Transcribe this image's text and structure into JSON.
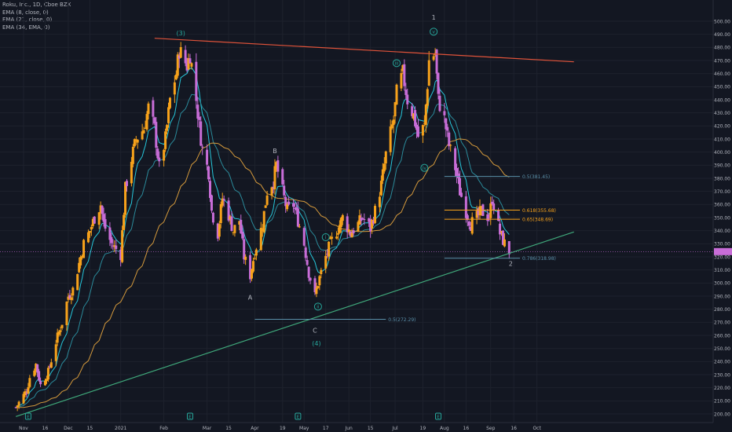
{
  "legend": {
    "title": "Roku, Inc., 1D, Cboe BZX",
    "ema8": "EMA (8, close, 0)",
    "ema21": "EMA (21, close, 0)",
    "ema34": "EMA (34, EMA, 0)"
  },
  "colors": {
    "background": "#131722",
    "grid": "#1e222d",
    "up": "#f7a21b",
    "down": "#c86dd7",
    "ema_fast": "#26c6da",
    "ema_slow": "#2b8a9a",
    "ema_long": "#d59a3c",
    "resistance": "#e0533a",
    "support": "#3fa77a",
    "wave_label": "#26a69a",
    "fib_line": "#5a8fa8",
    "fib_orange": "#f7a21b",
    "price_tag": "#c86dd7",
    "text": "#b2b5be"
  },
  "chart_data": {
    "type": "candlestick",
    "title": "Roku, Inc., 1D, Cboe BZX",
    "ylim": [
      195,
      505
    ],
    "y_ticks": [
      "500.00",
      "490.00",
      "480.00",
      "470.00",
      "460.00",
      "450.00",
      "440.00",
      "430.00",
      "420.00",
      "410.00",
      "400.00",
      "390.00",
      "380.00",
      "370.00",
      "360.00",
      "350.00",
      "340.00",
      "330.00",
      "320.00",
      "310.00",
      "300.00",
      "290.00",
      "280.00",
      "270.00",
      "260.00",
      "250.00",
      "240.00",
      "230.00",
      "220.00",
      "210.00",
      "200.00"
    ],
    "x_ticks": [
      {
        "label": "Nov",
        "date": "2020-11-02"
      },
      {
        "label": "16",
        "date": "2020-11-16"
      },
      {
        "label": "Dec",
        "date": "2020-12-01"
      },
      {
        "label": "15",
        "date": "2020-12-15"
      },
      {
        "label": "2021",
        "date": "2021-01-04"
      },
      {
        "label": "Feb",
        "date": "2021-02-01"
      },
      {
        "label": "Mar",
        "date": "2021-03-01"
      },
      {
        "label": "15",
        "date": "2021-03-15"
      },
      {
        "label": "Apr",
        "date": "2021-04-01"
      },
      {
        "label": "19",
        "date": "2021-04-19"
      },
      {
        "label": "May",
        "date": "2021-05-03"
      },
      {
        "label": "17",
        "date": "2021-05-17"
      },
      {
        "label": "Jun",
        "date": "2021-06-01"
      },
      {
        "label": "15",
        "date": "2021-06-15"
      },
      {
        "label": "Jul",
        "date": "2021-07-01"
      },
      {
        "label": "19",
        "date": "2021-07-19"
      },
      {
        "label": "Aug",
        "date": "2021-08-02"
      },
      {
        "label": "16",
        "date": "2021-08-16"
      },
      {
        "label": "Sep",
        "date": "2021-09-01"
      },
      {
        "label": "16",
        "date": "2021-09-16"
      },
      {
        "label": "Oct",
        "date": "2021-10-01"
      }
    ],
    "last_price": 324,
    "keypoints": [
      {
        "date": "2020-10-28",
        "close": 205
      },
      {
        "date": "2020-11-04",
        "close": 218
      },
      {
        "date": "2020-11-06",
        "close": 228
      },
      {
        "date": "2020-11-10",
        "close": 238
      },
      {
        "date": "2020-11-13",
        "close": 222
      },
      {
        "date": "2020-11-18",
        "close": 232
      },
      {
        "date": "2020-11-23",
        "close": 255
      },
      {
        "date": "2020-11-27",
        "close": 270
      },
      {
        "date": "2020-12-01",
        "close": 290
      },
      {
        "date": "2020-12-04",
        "close": 295
      },
      {
        "date": "2020-12-08",
        "close": 315
      },
      {
        "date": "2020-12-11",
        "close": 330
      },
      {
        "date": "2020-12-15",
        "close": 340
      },
      {
        "date": "2020-12-18",
        "close": 350
      },
      {
        "date": "2020-12-22",
        "close": 360
      },
      {
        "date": "2020-12-24",
        "close": 345
      },
      {
        "date": "2020-12-29",
        "close": 330
      },
      {
        "date": "2021-01-04",
        "close": 322
      },
      {
        "date": "2021-01-07",
        "close": 372
      },
      {
        "date": "2021-01-11",
        "close": 395
      },
      {
        "date": "2021-01-14",
        "close": 410
      },
      {
        "date": "2021-01-19",
        "close": 418
      },
      {
        "date": "2021-01-22",
        "close": 434
      },
      {
        "date": "2021-01-26",
        "close": 418
      },
      {
        "date": "2021-01-29",
        "close": 388
      },
      {
        "date": "2021-02-02",
        "close": 410
      },
      {
        "date": "2021-02-05",
        "close": 440
      },
      {
        "date": "2021-02-09",
        "close": 460
      },
      {
        "date": "2021-02-11",
        "close": 478
      },
      {
        "date": "2021-02-16",
        "close": 466
      },
      {
        "date": "2021-02-18",
        "close": 475
      },
      {
        "date": "2021-02-22",
        "close": 440
      },
      {
        "date": "2021-02-24",
        "close": 420
      },
      {
        "date": "2021-02-26",
        "close": 402
      },
      {
        "date": "2021-03-02",
        "close": 385
      },
      {
        "date": "2021-03-04",
        "close": 355
      },
      {
        "date": "2021-03-08",
        "close": 338
      },
      {
        "date": "2021-03-11",
        "close": 365
      },
      {
        "date": "2021-03-15",
        "close": 352
      },
      {
        "date": "2021-03-18",
        "close": 340
      },
      {
        "date": "2021-03-22",
        "close": 348
      },
      {
        "date": "2021-03-25",
        "close": 320
      },
      {
        "date": "2021-03-29",
        "close": 306
      },
      {
        "date": "2021-04-01",
        "close": 324
      },
      {
        "date": "2021-04-06",
        "close": 345
      },
      {
        "date": "2021-04-09",
        "close": 370
      },
      {
        "date": "2021-04-13",
        "close": 378
      },
      {
        "date": "2021-04-15",
        "close": 390
      },
      {
        "date": "2021-04-19",
        "close": 370
      },
      {
        "date": "2021-04-22",
        "close": 355
      },
      {
        "date": "2021-04-26",
        "close": 360
      },
      {
        "date": "2021-04-29",
        "close": 348
      },
      {
        "date": "2021-05-03",
        "close": 330
      },
      {
        "date": "2021-05-06",
        "close": 308
      },
      {
        "date": "2021-05-10",
        "close": 290
      },
      {
        "date": "2021-05-12",
        "close": 300
      },
      {
        "date": "2021-05-17",
        "close": 320
      },
      {
        "date": "2021-05-20",
        "close": 330
      },
      {
        "date": "2021-05-25",
        "close": 342
      },
      {
        "date": "2021-05-28",
        "close": 350
      },
      {
        "date": "2021-06-02",
        "close": 338
      },
      {
        "date": "2021-06-07",
        "close": 345
      },
      {
        "date": "2021-06-10",
        "close": 350
      },
      {
        "date": "2021-06-15",
        "close": 342
      },
      {
        "date": "2021-06-18",
        "close": 355
      },
      {
        "date": "2021-06-22",
        "close": 375
      },
      {
        "date": "2021-06-25",
        "close": 398
      },
      {
        "date": "2021-06-30",
        "close": 425
      },
      {
        "date": "2021-07-02",
        "close": 445
      },
      {
        "date": "2021-07-06",
        "close": 460
      },
      {
        "date": "2021-07-09",
        "close": 440
      },
      {
        "date": "2021-07-13",
        "close": 428
      },
      {
        "date": "2021-07-16",
        "close": 412
      },
      {
        "date": "2021-07-20",
        "close": 420
      },
      {
        "date": "2021-07-22",
        "close": 452
      },
      {
        "date": "2021-07-23",
        "close": 470
      },
      {
        "date": "2021-07-27",
        "close": 476
      },
      {
        "date": "2021-07-29",
        "close": 440
      },
      {
        "date": "2021-08-02",
        "close": 425
      },
      {
        "date": "2021-08-05",
        "close": 405
      },
      {
        "date": "2021-08-09",
        "close": 388
      },
      {
        "date": "2021-08-12",
        "close": 370
      },
      {
        "date": "2021-08-16",
        "close": 355
      },
      {
        "date": "2021-08-19",
        "close": 345
      },
      {
        "date": "2021-08-23",
        "close": 350
      },
      {
        "date": "2021-08-26",
        "close": 355
      },
      {
        "date": "2021-08-31",
        "close": 350
      },
      {
        "date": "2021-09-02",
        "close": 365
      },
      {
        "date": "2021-09-07",
        "close": 338
      },
      {
        "date": "2021-09-10",
        "close": 330
      },
      {
        "date": "2021-09-13",
        "close": 324
      }
    ],
    "trendlines": [
      {
        "name": "resistance",
        "from": {
          "date": "2021-01-26",
          "price": 487
        },
        "to": {
          "date": "2021-10-25",
          "price": 469
        }
      },
      {
        "name": "support",
        "from": {
          "date": "2020-10-28",
          "price": 198
        },
        "to": {
          "date": "2021-10-25",
          "price": 339
        }
      }
    ],
    "fib_levels": [
      {
        "label": "0.5(381.45)",
        "price": 381.45,
        "from": "2021-08-02",
        "to": "2021-09-20"
      },
      {
        "label": "0.618(355.68)",
        "price": 355.68,
        "from": "2021-08-02",
        "to": "2021-09-20"
      },
      {
        "label": "0.65(348.69)",
        "price": 348.69,
        "from": "2021-08-02",
        "to": "2021-09-20"
      },
      {
        "label": "0.786(318.98)",
        "price": 318.98,
        "from": "2021-08-02",
        "to": "2021-09-20"
      },
      {
        "label": "0.5(272.29)",
        "price": 272.29,
        "from": "2021-04-01",
        "to": "2021-06-25"
      }
    ],
    "wave_labels": [
      {
        "text": "(3)",
        "date": "2021-02-12",
        "price": 491,
        "style": "paren"
      },
      {
        "text": "A",
        "date": "2021-03-29",
        "price": 289,
        "style": "plain"
      },
      {
        "text": "B",
        "date": "2021-04-14",
        "price": 401,
        "style": "plain"
      },
      {
        "text": "C",
        "date": "2021-05-10",
        "price": 264,
        "style": "plain"
      },
      {
        "text": "i",
        "date": "2021-05-17",
        "price": 335,
        "style": "circle"
      },
      {
        "text": "ii",
        "date": "2021-05-12",
        "price": 282,
        "style": "circle"
      },
      {
        "text": "(4)",
        "date": "2021-05-11",
        "price": 254,
        "style": "paren"
      },
      {
        "text": "iii",
        "date": "2021-07-02",
        "price": 468,
        "style": "circle"
      },
      {
        "text": "iv",
        "date": "2021-07-20",
        "price": 388,
        "style": "circle"
      },
      {
        "text": "v",
        "date": "2021-07-26",
        "price": 492,
        "style": "circle"
      },
      {
        "text": "1",
        "date": "2021-07-26",
        "price": 503,
        "style": "plain"
      },
      {
        "text": "2",
        "date": "2021-09-14",
        "price": 315,
        "style": "plain"
      }
    ],
    "session_markers": [
      {
        "text": "E",
        "date": "2020-11-05"
      },
      {
        "text": "E",
        "date": "2021-02-18"
      },
      {
        "text": "E",
        "date": "2021-04-29"
      },
      {
        "text": "E",
        "date": "2021-07-29"
      }
    ]
  }
}
